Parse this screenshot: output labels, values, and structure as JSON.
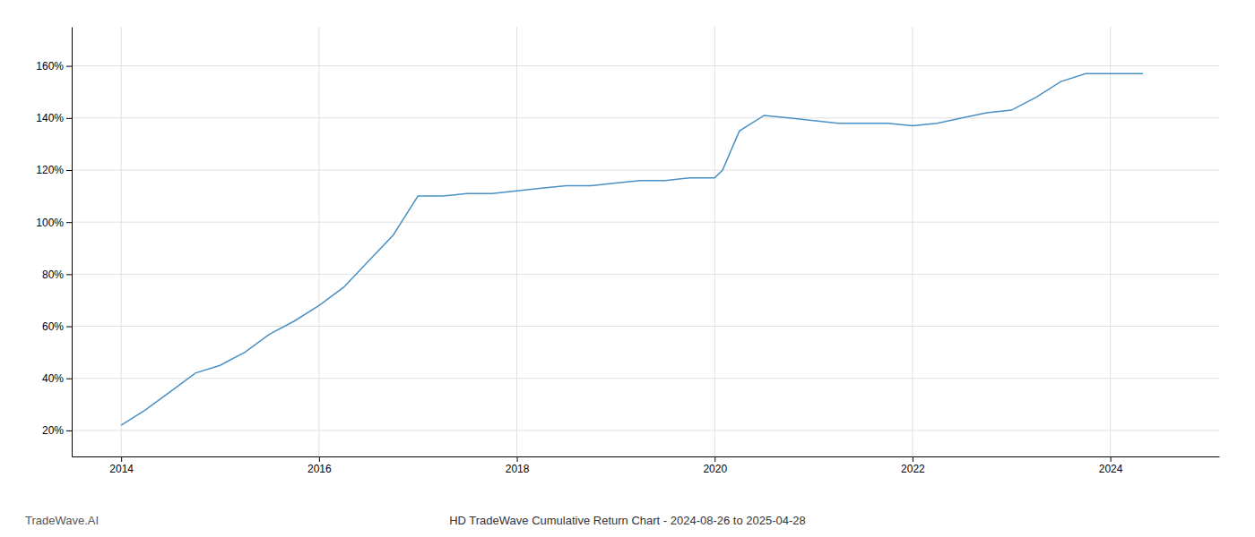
{
  "chart_data": {
    "type": "line",
    "title": "HD TradeWave Cumulative Return Chart - 2024-08-26 to 2025-04-28",
    "annotations": [
      "TradeWave.AI"
    ],
    "x": [
      2014.0,
      2014.25,
      2014.5,
      2014.75,
      2015.0,
      2015.25,
      2015.5,
      2015.75,
      2016.0,
      2016.25,
      2016.5,
      2016.75,
      2017.0,
      2017.25,
      2017.5,
      2017.75,
      2018.0,
      2018.25,
      2018.5,
      2018.75,
      2019.0,
      2019.25,
      2019.5,
      2019.75,
      2020.0,
      2020.08,
      2020.25,
      2020.5,
      2020.75,
      2021.0,
      2021.25,
      2021.5,
      2021.75,
      2022.0,
      2022.25,
      2022.5,
      2022.75,
      2023.0,
      2023.25,
      2023.5,
      2023.75,
      2024.0,
      2024.33
    ],
    "values": [
      0.22,
      0.28,
      0.35,
      0.42,
      0.45,
      0.5,
      0.57,
      0.62,
      0.68,
      0.75,
      0.85,
      0.95,
      1.1,
      1.1,
      1.11,
      1.11,
      1.12,
      1.13,
      1.14,
      1.14,
      1.15,
      1.16,
      1.16,
      1.17,
      1.17,
      1.2,
      1.35,
      1.41,
      1.4,
      1.39,
      1.38,
      1.38,
      1.38,
      1.37,
      1.38,
      1.4,
      1.42,
      1.43,
      1.48,
      1.54,
      1.57,
      1.57,
      1.57
    ],
    "color": "#4a90c4",
    "xlim": [
      2013.5,
      2025.1
    ],
    "xticks": [
      2014,
      2016,
      2018,
      2020,
      2022,
      2024
    ],
    "ylim": [
      0.1,
      1.75
    ],
    "yticks": [
      {
        "value": 0.2,
        "label": "20%"
      },
      {
        "value": 0.4,
        "label": "40%"
      },
      {
        "value": 0.6,
        "label": "60%"
      },
      {
        "value": 0.8,
        "label": "80%"
      },
      {
        "value": 1.0,
        "label": "100%"
      },
      {
        "value": 1.2,
        "label": "120%"
      },
      {
        "value": 1.4,
        "label": "140%"
      },
      {
        "value": 1.6,
        "label": "160%"
      }
    ],
    "grid": true
  }
}
